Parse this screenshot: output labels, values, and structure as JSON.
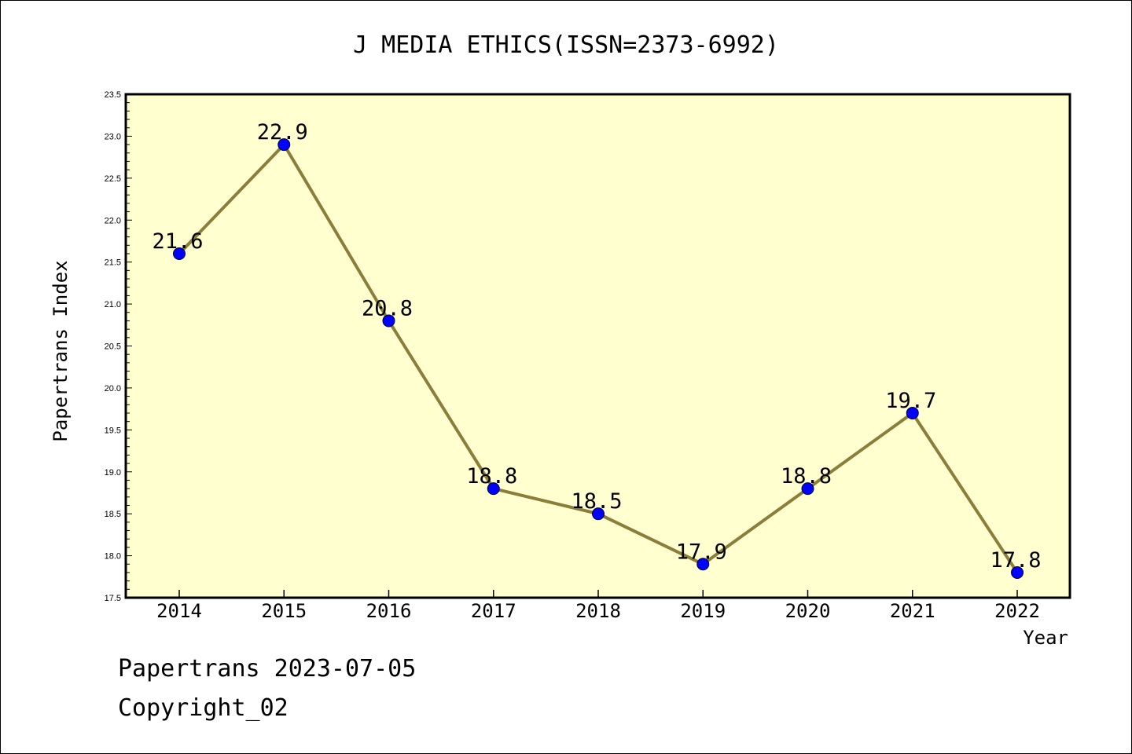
{
  "colors": {
    "background": "#ffffff",
    "plot_background": "#ffffd0",
    "line": "#8b7d3a",
    "marker": "#0000ff",
    "axis": "#000000"
  },
  "chart_data": {
    "type": "line",
    "title": "J MEDIA ETHICS(ISSN=2373-6992)",
    "xlabel": "Year",
    "ylabel": "Papertrans Index",
    "categories": [
      "2014",
      "2015",
      "2016",
      "2017",
      "2018",
      "2019",
      "2020",
      "2021",
      "2022"
    ],
    "series": [
      {
        "values": [
          21.6,
          22.9,
          20.8,
          18.8,
          18.5,
          17.9,
          18.8,
          19.7,
          17.8
        ]
      }
    ],
    "data_labels": [
      "21.6",
      "22.9",
      "20.8",
      "18.8",
      "18.5",
      "17.9",
      "18.8",
      "19.7",
      "17.8"
    ],
    "ylim": [
      17.5,
      23.5
    ],
    "yticks": [
      "17.5",
      "18.0",
      "18.5",
      "19.0",
      "19.5",
      "20.0",
      "20.5",
      "21.0",
      "21.5",
      "22.0",
      "22.5",
      "23.0",
      "23.5"
    ],
    "grid": false,
    "legend": "none"
  },
  "footer": {
    "line1": "Papertrans 2023-07-05",
    "line2": "Copyright_02"
  }
}
